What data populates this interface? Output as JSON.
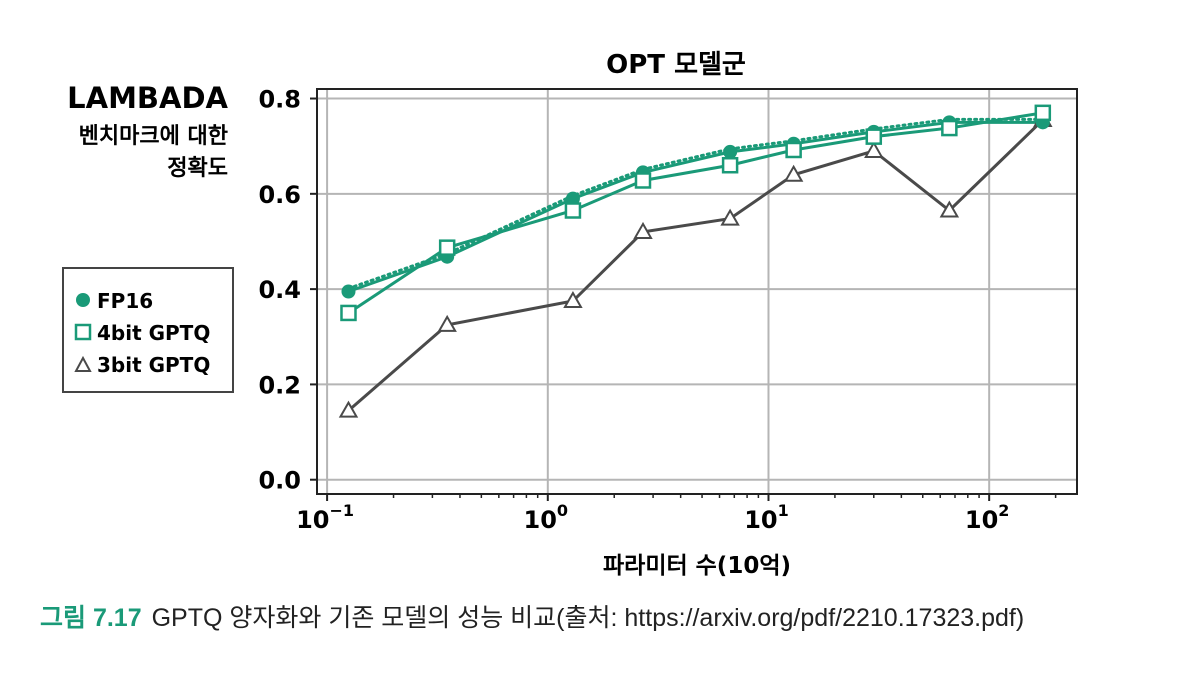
{
  "chart_data": {
    "type": "line",
    "title": "OPT 모델군",
    "ylabel_lines": [
      "LAMBADA",
      "벤치마크에 대한",
      "정확도"
    ],
    "xlabel": "파라미터 수(10억)",
    "x_scale": "log",
    "xlim": [
      0.09,
      250
    ],
    "ylim": [
      -0.03,
      0.82
    ],
    "grid": true,
    "x_ticks": [
      {
        "value": 0.1,
        "base": "10",
        "exp": "−1"
      },
      {
        "value": 1,
        "base": "10",
        "exp": "0"
      },
      {
        "value": 10,
        "base": "10",
        "exp": "1"
      },
      {
        "value": 100,
        "base": "10",
        "exp": "2"
      }
    ],
    "y_ticks": [
      {
        "value": 0.0,
        "label": "0.0"
      },
      {
        "value": 0.2,
        "label": "0.2"
      },
      {
        "value": 0.4,
        "label": "0.4"
      },
      {
        "value": 0.6,
        "label": "0.6"
      },
      {
        "value": 0.8,
        "label": "0.8"
      }
    ],
    "x": [
      0.125,
      0.35,
      1.3,
      2.7,
      6.7,
      13,
      30,
      66,
      175
    ],
    "series": [
      {
        "name": "FP16",
        "marker": "circle",
        "color": "#1a9a78",
        "dotted_trend": true,
        "values": [
          0.395,
          0.468,
          0.59,
          0.645,
          0.688,
          0.705,
          0.73,
          0.75,
          0.75
        ]
      },
      {
        "name": "4bit GPTQ",
        "marker": "square",
        "color": "#1a9a78",
        "values": [
          0.35,
          0.487,
          0.565,
          0.628,
          0.66,
          0.692,
          0.72,
          0.738,
          0.77
        ]
      },
      {
        "name": "3bit GPTQ",
        "marker": "triangle",
        "color": "#4a4a4a",
        "values": [
          0.145,
          0.325,
          0.375,
          0.52,
          0.548,
          0.64,
          0.69,
          0.565,
          0.755
        ]
      }
    ],
    "legend_position": "left"
  },
  "caption": {
    "figure_label": "그림 7.17",
    "text": "GPTQ 양자화와 기존 모델의 성능 비교(출처: https://arxiv.org/pdf/2210.17323.pdf)"
  }
}
